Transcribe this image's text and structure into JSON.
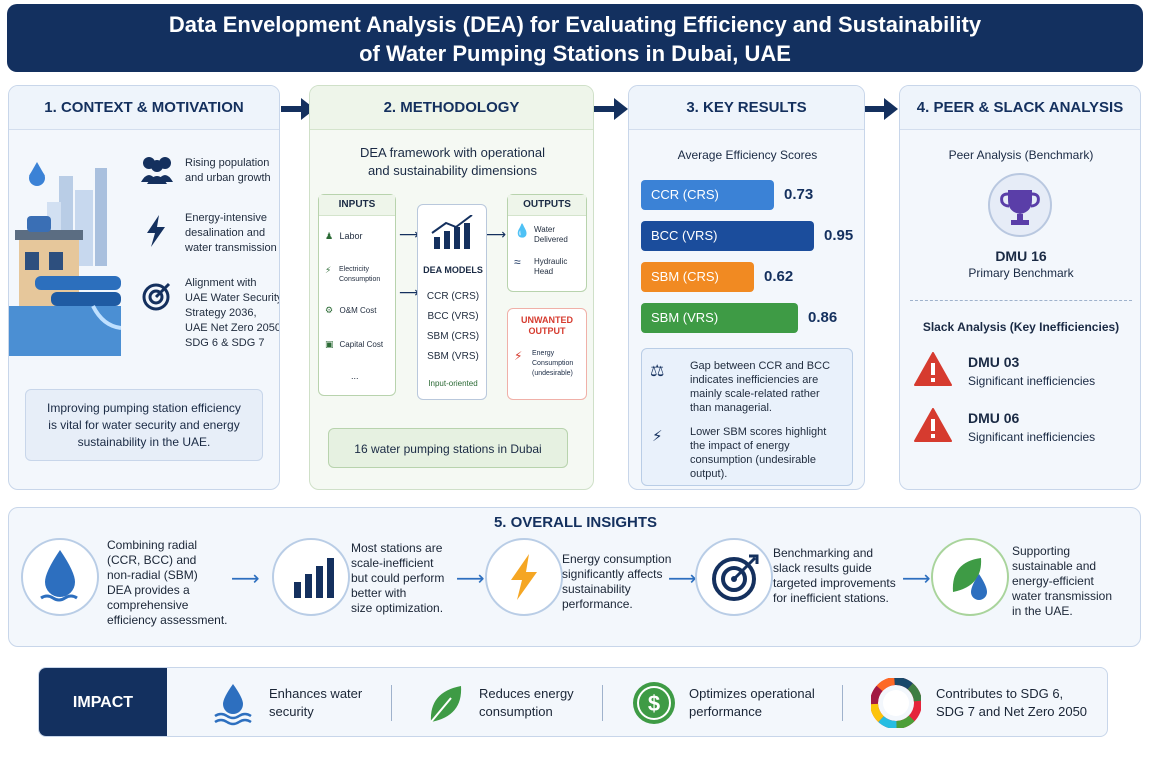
{
  "title": {
    "line1": "Data Envelopment Analysis (DEA) for Evaluating Efficiency and Sustainability",
    "line2": "of Water Pumping Stations in Dubai, UAE"
  },
  "context": {
    "header": "1. CONTEXT & MOTIVATION",
    "items": [
      {
        "icon": "people-icon",
        "line1": "Rising population",
        "line2": "and urban growth"
      },
      {
        "icon": "lightning-icon",
        "line1": "Energy-intensive",
        "line2": "desalination and",
        "line3": "water transmission"
      },
      {
        "icon": "target-icon",
        "line1": "Alignment with",
        "line2": "UAE Water Security",
        "line3": "Strategy 2036,",
        "line4": "UAE Net Zero 2050,",
        "line5": "SDG 6 & SDG 7"
      }
    ],
    "note_line1": "Improving pumping station efficiency",
    "note_line2": "is vital for water security and energy",
    "note_line3": "sustainability in the UAE."
  },
  "methodology": {
    "header": "2. METHODOLOGY",
    "subtitle_line1": "DEA framework with operational",
    "subtitle_line2": "and sustainability dimensions",
    "inputs_title": "INPUTS",
    "inputs": [
      "Labor",
      "Electricity Consumption",
      "O&M Cost",
      "Capital Cost",
      "..."
    ],
    "models_title": "DEA MODELS",
    "models": [
      "CCR (CRS)",
      "BCC (VRS)",
      "SBM (CRS)",
      "SBM (VRS)"
    ],
    "models_note": "Input-oriented",
    "outputs_title": "OUTPUTS",
    "outputs": [
      {
        "line1": "Water",
        "line2": "Delivered"
      },
      {
        "line1": "Hydraulic",
        "line2": "Head"
      }
    ],
    "unwanted_title_line1": "UNWANTED",
    "unwanted_title_line2": "OUTPUT",
    "unwanted_item_line1": "Energy",
    "unwanted_item_line2": "Consumption",
    "unwanted_item_line3": "(undesirable)",
    "footer": "16 water pumping stations in Dubai"
  },
  "results": {
    "header": "3. KEY RESULTS",
    "subtitle": "Average Efficiency Scores",
    "bars": [
      {
        "label": "CCR (CRS)",
        "value": 0.73,
        "display": "0.73",
        "color": "#3b82d6"
      },
      {
        "label": "BCC (VRS)",
        "value": 0.95,
        "display": "0.95",
        "color": "#1b4d9c"
      },
      {
        "label": "SBM (CRS)",
        "value": 0.62,
        "display": "0.62",
        "color": "#f18a22"
      },
      {
        "label": "SBM (VRS)",
        "value": 0.86,
        "display": "0.86",
        "color": "#3e9b45"
      }
    ],
    "notes": [
      {
        "icon": "scale-icon",
        "lines": [
          "Gap between CCR and BCC",
          "indicates inefficiencies are",
          "mainly scale-related rather",
          "than managerial."
        ]
      },
      {
        "icon": "lightning-icon",
        "lines": [
          "Lower SBM scores highlight",
          "the impact of energy",
          "consumption (undesirable",
          "output)."
        ]
      }
    ]
  },
  "peer": {
    "header": "4. PEER & SLACK ANALYSIS",
    "peer_title": "Peer Analysis (Benchmark)",
    "benchmark_dmu": "DMU 16",
    "benchmark_label": "Primary Benchmark",
    "slack_title": "Slack Analysis (Key Inefficiencies)",
    "slack_items": [
      {
        "dmu": "DMU 03",
        "desc": "Significant inefficiencies"
      },
      {
        "dmu": "DMU 06",
        "desc": "Significant inefficiencies"
      }
    ]
  },
  "insights": {
    "header": "5. OVERALL INSIGHTS",
    "items": [
      {
        "icon": "water-drop-icon",
        "lines": [
          "Combining radial",
          "(CCR, BCC) and",
          "non-radial (SBM)",
          "DEA provides a",
          "comprehensive",
          "efficiency assessment."
        ]
      },
      {
        "icon": "bar-chart-icon",
        "lines": [
          "Most stations are",
          "scale-inefficient",
          "but could perform",
          "better with",
          "size optimization."
        ]
      },
      {
        "icon": "lightning-icon",
        "lines": [
          "Energy consumption",
          "significantly affects",
          "sustainability",
          "performance."
        ]
      },
      {
        "icon": "target-icon",
        "lines": [
          "Benchmarking and",
          "slack results guide",
          "targeted improvements",
          "for inefficient stations."
        ]
      },
      {
        "icon": "leaf-drop-icon",
        "lines": [
          "Supporting",
          "sustainable and",
          "energy-efficient",
          "water transmission",
          "in the UAE."
        ]
      }
    ]
  },
  "impact": {
    "label": "IMPACT",
    "items": [
      {
        "icon": "water-drop-icon",
        "line1": "Enhances water",
        "line2": "security"
      },
      {
        "icon": "leaf-icon",
        "line1": "Reduces energy",
        "line2": "consumption"
      },
      {
        "icon": "dollar-icon",
        "line1": "Optimizes operational",
        "line2": "performance"
      },
      {
        "icon": "sdg-wheel-icon",
        "line1": "Contributes to SDG 6,",
        "line2": "SDG 7 and Net Zero 2050"
      }
    ]
  },
  "colors": {
    "navy": "#13305f",
    "blue": "#3b82d6",
    "orange": "#f18a22",
    "green": "#3e9b45",
    "red": "#d63b2f"
  }
}
